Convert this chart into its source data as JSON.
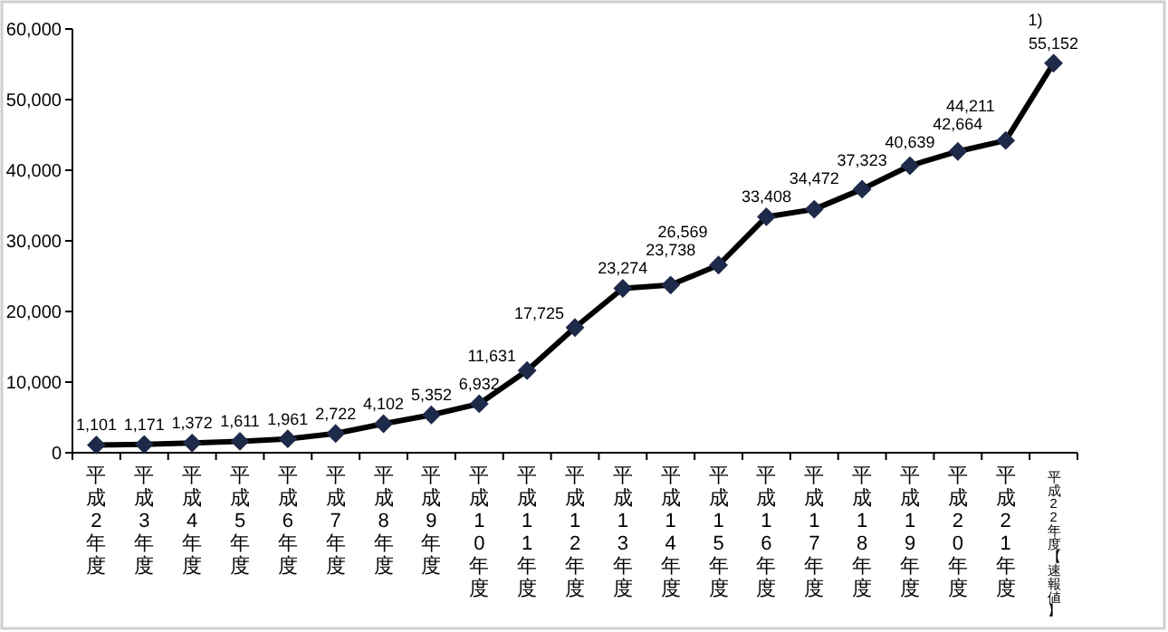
{
  "chart_data": {
    "type": "line",
    "categories": [
      "平成2年度",
      "平成3年度",
      "平成4年度",
      "平成5年度",
      "平成6年度",
      "平成7年度",
      "平成8年度",
      "平成9年度",
      "平成10年度",
      "平成11年度",
      "平成12年度",
      "平成13年度",
      "平成14年度",
      "平成15年度",
      "平成16年度",
      "平成17年度",
      "平成18年度",
      "平成19年度",
      "平成20年度",
      "平成21年度",
      "平成22年度【速報値】"
    ],
    "values": [
      1101,
      1171,
      1372,
      1611,
      1961,
      2722,
      4102,
      5352,
      6932,
      11631,
      17725,
      23274,
      23738,
      26569,
      33408,
      34472,
      37323,
      40639,
      42664,
      44211,
      55152
    ],
    "value_labels": [
      "1,101",
      "1,171",
      "1,372",
      "1,611",
      "1,961",
      "2,722",
      "4,102",
      "5,352",
      "6,932",
      "11,631",
      "17,725",
      "23,274",
      "23,738",
      "26,569",
      "33,408",
      "34,472",
      "37,323",
      "40,639",
      "42,664",
      "44,211",
      "55,152"
    ],
    "color": "#000000",
    "marker": "diamond",
    "line_style": "solid",
    "grid": false,
    "ylim": [
      0,
      60000
    ],
    "yticks": [
      {
        "value": 0,
        "label": "0"
      },
      {
        "value": 10000,
        "label": "10,000"
      },
      {
        "value": 20000,
        "label": "20,000"
      },
      {
        "value": 30000,
        "label": "30,000"
      },
      {
        "value": 40000,
        "label": "40,000"
      },
      {
        "value": 50000,
        "label": "50,000"
      },
      {
        "value": 60000,
        "label": "60,000"
      }
    ],
    "annotations": [
      {
        "text": "1)",
        "x": "平成22年度【速報値】",
        "y": 55152
      }
    ]
  }
}
